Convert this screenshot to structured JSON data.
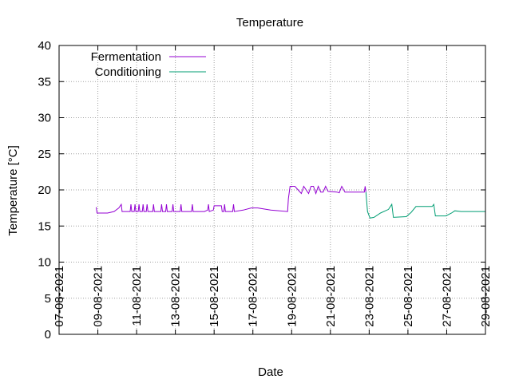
{
  "chart_data": {
    "type": "line",
    "title": "Temperature",
    "xlabel": "Date",
    "ylabel": "Temperature [°C]",
    "x_type": "date",
    "xlim": [
      "2021-08-07",
      "2021-08-29"
    ],
    "ylim": [
      0,
      40
    ],
    "x_ticks": [
      "07-08-2021",
      "09-08-2021",
      "11-08-2021",
      "13-08-2021",
      "15-08-2021",
      "17-08-2021",
      "19-08-2021",
      "21-08-2021",
      "23-08-2021",
      "25-08-2021",
      "27-08-2021",
      "29-08-2021"
    ],
    "y_ticks": [
      "0",
      "5",
      "10",
      "15",
      "20",
      "25",
      "30",
      "35",
      "40"
    ],
    "grid": true,
    "legend_position": "top-left",
    "series": [
      {
        "name": "Fermentation",
        "color": "#9400d3",
        "points": [
          [
            "2021-08-08 22:00",
            17.6
          ],
          [
            "2021-08-08 23:00",
            16.8
          ],
          [
            "2021-08-09 12:00",
            16.8
          ],
          [
            "2021-08-09 20:00",
            17.0
          ],
          [
            "2021-08-10 02:00",
            17.5
          ],
          [
            "2021-08-10 05:00",
            18.0
          ],
          [
            "2021-08-10 06:00",
            17.0
          ],
          [
            "2021-08-10 16:00",
            17.0
          ],
          [
            "2021-08-10 17:00",
            18.0
          ],
          [
            "2021-08-10 18:00",
            17.0
          ],
          [
            "2021-08-10 21:00",
            17.0
          ],
          [
            "2021-08-10 22:00",
            18.0
          ],
          [
            "2021-08-10 23:00",
            17.0
          ],
          [
            "2021-08-11 02:00",
            17.0
          ],
          [
            "2021-08-11 03:00",
            18.0
          ],
          [
            "2021-08-11 04:00",
            17.0
          ],
          [
            "2021-08-11 07:00",
            17.0
          ],
          [
            "2021-08-11 08:00",
            18.0
          ],
          [
            "2021-08-11 09:00",
            17.0
          ],
          [
            "2021-08-11 12:00",
            17.0
          ],
          [
            "2021-08-11 13:00",
            18.0
          ],
          [
            "2021-08-11 14:00",
            17.0
          ],
          [
            "2021-08-11 20:00",
            17.0
          ],
          [
            "2021-08-11 21:00",
            18.0
          ],
          [
            "2021-08-11 22:00",
            17.0
          ],
          [
            "2021-08-12 06:00",
            17.0
          ],
          [
            "2021-08-12 07:00",
            18.0
          ],
          [
            "2021-08-12 08:00",
            17.0
          ],
          [
            "2021-08-12 12:00",
            17.0
          ],
          [
            "2021-08-12 13:00",
            18.0
          ],
          [
            "2021-08-12 14:00",
            17.0
          ],
          [
            "2021-08-12 20:00",
            17.0
          ],
          [
            "2021-08-12 21:00",
            18.0
          ],
          [
            "2021-08-12 22:00",
            17.0
          ],
          [
            "2021-08-13 06:00",
            17.0
          ],
          [
            "2021-08-13 07:00",
            18.0
          ],
          [
            "2021-08-13 08:00",
            17.0
          ],
          [
            "2021-08-13 20:00",
            17.0
          ],
          [
            "2021-08-13 21:00",
            18.0
          ],
          [
            "2021-08-13 22:00",
            17.0
          ],
          [
            "2021-08-14 12:00",
            17.0
          ],
          [
            "2021-08-14 16:00",
            17.2
          ],
          [
            "2021-08-14 17:00",
            18.0
          ],
          [
            "2021-08-14 18:00",
            17.0
          ],
          [
            "2021-08-14 23:00",
            17.2
          ],
          [
            "2021-08-15 00:00",
            17.8
          ],
          [
            "2021-08-15 09:00",
            17.8
          ],
          [
            "2021-08-15 10:00",
            17.0
          ],
          [
            "2021-08-15 12:00",
            17.0
          ],
          [
            "2021-08-15 13:00",
            18.0
          ],
          [
            "2021-08-15 14:00",
            17.0
          ],
          [
            "2021-08-15 23:00",
            17.0
          ],
          [
            "2021-08-16 00:00",
            18.0
          ],
          [
            "2021-08-16 01:00",
            17.0
          ],
          [
            "2021-08-16 12:00",
            17.2
          ],
          [
            "2021-08-16 22:00",
            17.5
          ],
          [
            "2021-08-17 06:00",
            17.5
          ],
          [
            "2021-08-17 22:00",
            17.2
          ],
          [
            "2021-08-18 19:00",
            17.0
          ],
          [
            "2021-08-18 20:00",
            18.8
          ],
          [
            "2021-08-18 22:00",
            20.5
          ],
          [
            "2021-08-19 04:00",
            20.5
          ],
          [
            "2021-08-19 12:00",
            19.5
          ],
          [
            "2021-08-19 15:00",
            20.5
          ],
          [
            "2021-08-19 21:00",
            19.5
          ],
          [
            "2021-08-20 00:00",
            20.5
          ],
          [
            "2021-08-20 03:00",
            20.5
          ],
          [
            "2021-08-20 06:00",
            19.5
          ],
          [
            "2021-08-20 09:00",
            20.5
          ],
          [
            "2021-08-20 12:00",
            19.7
          ],
          [
            "2021-08-20 15:00",
            19.7
          ],
          [
            "2021-08-20 18:00",
            20.5
          ],
          [
            "2021-08-20 21:00",
            19.8
          ],
          [
            "2021-08-21 08:00",
            19.7
          ],
          [
            "2021-08-21 11:00",
            19.6
          ],
          [
            "2021-08-21 14:00",
            20.5
          ],
          [
            "2021-08-21 18:00",
            19.7
          ],
          [
            "2021-08-22 18:00",
            19.7
          ],
          [
            "2021-08-22 19:00",
            20.5
          ],
          [
            "2021-08-22 20:00",
            19.7
          ]
        ]
      },
      {
        "name": "Conditioning",
        "color": "#009e73",
        "points": [
          [
            "2021-08-22 20:00",
            19.7
          ],
          [
            "2021-08-22 22:00",
            17.0
          ],
          [
            "2021-08-23 01:00",
            16.1
          ],
          [
            "2021-08-23 06:00",
            16.2
          ],
          [
            "2021-08-23 14:00",
            16.8
          ],
          [
            "2021-08-24 00:00",
            17.3
          ],
          [
            "2021-08-24 04:00",
            18.0
          ],
          [
            "2021-08-24 06:00",
            16.2
          ],
          [
            "2021-08-24 22:00",
            16.3
          ],
          [
            "2021-08-25 04:00",
            16.9
          ],
          [
            "2021-08-25 10:00",
            17.7
          ],
          [
            "2021-08-25 14:00",
            17.7
          ],
          [
            "2021-08-26 06:00",
            17.7
          ],
          [
            "2021-08-26 08:00",
            18.0
          ],
          [
            "2021-08-26 10:00",
            16.4
          ],
          [
            "2021-08-26 23:00",
            16.4
          ],
          [
            "2021-08-27 06:00",
            16.8
          ],
          [
            "2021-08-27 10:00",
            17.1
          ],
          [
            "2021-08-27 18:00",
            17.0
          ],
          [
            "2021-08-29 00:00",
            17.0
          ]
        ]
      }
    ]
  }
}
